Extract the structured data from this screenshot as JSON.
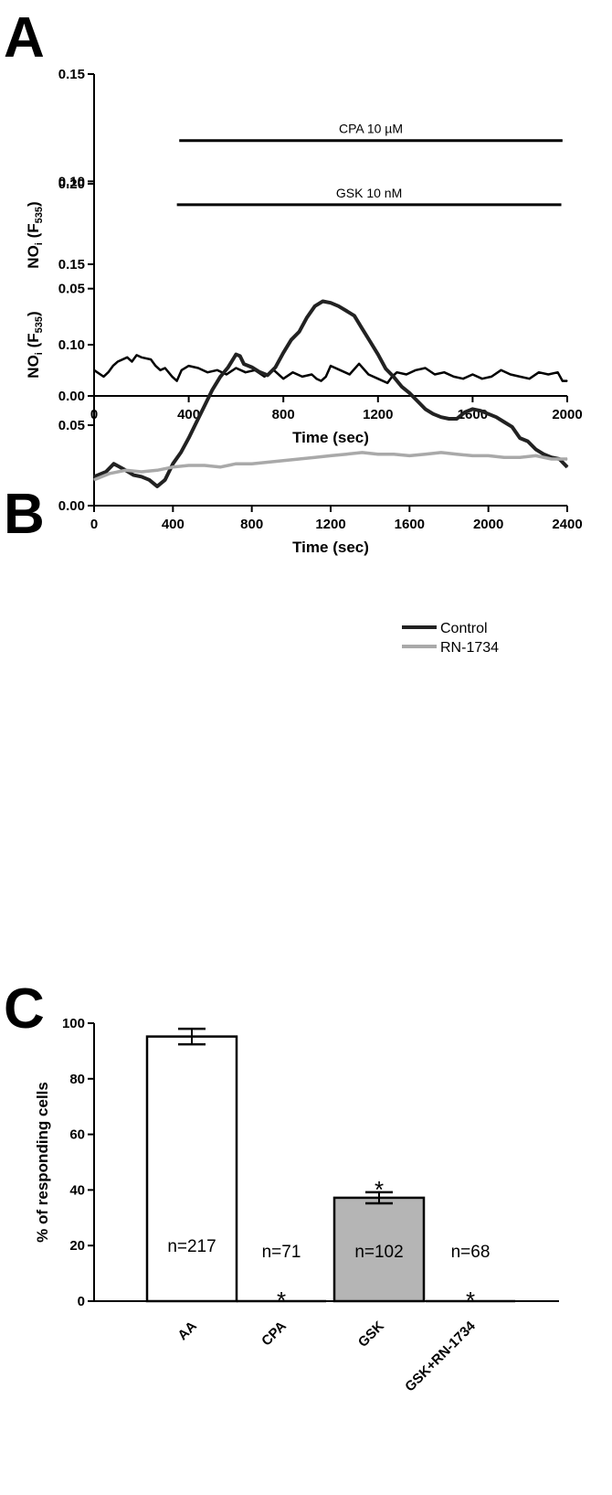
{
  "chart_data": [
    {
      "panel": "A",
      "type": "line",
      "xlabel": "Time (sec)",
      "ylabel": "NOi (F535)",
      "ylabel_parts": {
        "main": "NO",
        "sub1": "i",
        "open": " (F",
        "sub2": "535",
        "close": ")"
      },
      "xlim": [
        0,
        2000
      ],
      "ylim": [
        0,
        0.15
      ],
      "xticks": [
        0,
        400,
        800,
        1200,
        1600,
        2000
      ],
      "yticks": [
        "0.00",
        "0.05",
        "0.10",
        "0.15"
      ],
      "annotation": {
        "text": "CPA 10 µM",
        "x_start": 360,
        "x_end": 1980,
        "y": 0.119
      },
      "series": [
        {
          "color": "#000000",
          "x": [
            0,
            40,
            60,
            80,
            100,
            140,
            160,
            180,
            200,
            240,
            260,
            280,
            300,
            330,
            350,
            370,
            400,
            440,
            480,
            520,
            560,
            600,
            640,
            680,
            720,
            760,
            800,
            840,
            880,
            920,
            940,
            960,
            980,
            1000,
            1040,
            1080,
            1120,
            1160,
            1200,
            1240,
            1260,
            1280,
            1320,
            1360,
            1400,
            1440,
            1480,
            1520,
            1560,
            1600,
            1640,
            1680,
            1720,
            1760,
            1800,
            1840,
            1880,
            1920,
            1960,
            1980,
            2000
          ],
          "y": [
            0.012,
            0.009,
            0.011,
            0.014,
            0.016,
            0.018,
            0.016,
            0.019,
            0.018,
            0.017,
            0.014,
            0.012,
            0.013,
            0.009,
            0.007,
            0.012,
            0.014,
            0.013,
            0.011,
            0.012,
            0.01,
            0.013,
            0.011,
            0.012,
            0.009,
            0.012,
            0.008,
            0.011,
            0.009,
            0.01,
            0.008,
            0.007,
            0.009,
            0.014,
            0.012,
            0.01,
            0.015,
            0.01,
            0.008,
            0.006,
            0.009,
            0.011,
            0.01,
            0.012,
            0.013,
            0.01,
            0.011,
            0.009,
            0.008,
            0.01,
            0.008,
            0.009,
            0.012,
            0.01,
            0.009,
            0.008,
            0.011,
            0.01,
            0.011,
            0.007,
            0.007
          ]
        }
      ]
    },
    {
      "panel": "B",
      "type": "line",
      "xlabel": "Time (sec)",
      "ylabel": "NOi (F535)",
      "ylabel_parts": {
        "main": "NO",
        "sub1": "i",
        "open": " (F",
        "sub2": "535",
        "close": ")"
      },
      "xlim": [
        0,
        2400
      ],
      "ylim": [
        0,
        0.2
      ],
      "xticks": [
        0,
        400,
        800,
        1200,
        1600,
        2000,
        2400
      ],
      "yticks": [
        "0.00",
        "0.05",
        "0.10",
        "0.15",
        "0.20"
      ],
      "annotation": {
        "text": "GSK 10 nM",
        "x_start": 420,
        "x_end": 2370,
        "y": 0.187
      },
      "legend_position": "right",
      "series": [
        {
          "name": "Control",
          "color": "#222222",
          "x": [
            0,
            60,
            100,
            160,
            200,
            240,
            280,
            320,
            360,
            400,
            440,
            480,
            520,
            560,
            600,
            640,
            680,
            720,
            740,
            760,
            800,
            840,
            880,
            920,
            960,
            1000,
            1040,
            1080,
            1120,
            1160,
            1200,
            1240,
            1280,
            1320,
            1360,
            1400,
            1440,
            1480,
            1520,
            1560,
            1600,
            1640,
            1680,
            1720,
            1760,
            1800,
            1840,
            1880,
            1920,
            1960,
            2000,
            2040,
            2080,
            2120,
            2160,
            2200,
            2240,
            2280,
            2320,
            2360,
            2400
          ],
          "y": [
            0.018,
            0.021,
            0.026,
            0.022,
            0.019,
            0.018,
            0.016,
            0.012,
            0.016,
            0.026,
            0.033,
            0.042,
            0.052,
            0.062,
            0.072,
            0.08,
            0.086,
            0.094,
            0.093,
            0.088,
            0.086,
            0.083,
            0.081,
            0.086,
            0.095,
            0.103,
            0.108,
            0.117,
            0.124,
            0.127,
            0.126,
            0.124,
            0.121,
            0.118,
            0.11,
            0.102,
            0.094,
            0.085,
            0.08,
            0.074,
            0.07,
            0.065,
            0.06,
            0.057,
            0.055,
            0.054,
            0.054,
            0.058,
            0.06,
            0.059,
            0.057,
            0.055,
            0.052,
            0.049,
            0.042,
            0.04,
            0.035,
            0.032,
            0.03,
            0.029,
            0.024
          ]
        },
        {
          "name": "RN-1734",
          "color": "#a9a9a9",
          "x": [
            0,
            80,
            160,
            240,
            320,
            400,
            480,
            560,
            640,
            720,
            800,
            880,
            960,
            1040,
            1120,
            1200,
            1280,
            1360,
            1440,
            1520,
            1600,
            1680,
            1760,
            1840,
            1920,
            2000,
            2080,
            2160,
            2240,
            2320,
            2400
          ],
          "y": [
            0.016,
            0.02,
            0.022,
            0.021,
            0.022,
            0.024,
            0.025,
            0.025,
            0.024,
            0.026,
            0.026,
            0.027,
            0.028,
            0.029,
            0.03,
            0.031,
            0.032,
            0.033,
            0.032,
            0.032,
            0.031,
            0.032,
            0.033,
            0.032,
            0.031,
            0.031,
            0.03,
            0.03,
            0.031,
            0.029,
            0.029
          ]
        }
      ]
    },
    {
      "panel": "C",
      "type": "bar",
      "ylabel": "% of responding cells",
      "ylim": [
        0,
        100
      ],
      "yticks": [
        "0",
        "20",
        "40",
        "60",
        "80",
        "100"
      ],
      "categories": [
        "AA",
        "CPA",
        "GSK",
        "GSK+RN-1734"
      ],
      "values": [
        95.2,
        0,
        37.2,
        0
      ],
      "errors": [
        2.8,
        0,
        2.0,
        0
      ],
      "n_labels": [
        "n=217",
        "n=71",
        "n=102",
        "n=68"
      ],
      "significance": [
        "",
        "*",
        "*",
        "*"
      ],
      "fills": [
        "#ffffff",
        "#ffffff",
        "#b5b5b5",
        "#ffffff"
      ]
    }
  ],
  "panels": {
    "a": "A",
    "b": "B",
    "c": "C"
  }
}
